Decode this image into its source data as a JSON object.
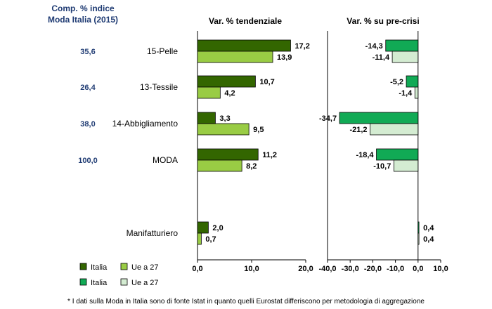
{
  "header": {
    "comp_title_line1": "Comp. % indice",
    "comp_title_line2": "Moda Italia (2015)"
  },
  "footnote": "* I dati sulla Moda in Italia sono di fonte Istat in quanto quelli Eurostat differiscono per metodologia di aggregazione",
  "chart_data": [
    {
      "type": "bar",
      "orientation": "horizontal",
      "title": "Var. % tendenziale",
      "categories": [
        "15-Pelle",
        "13-Tessile",
        "14-Abbigliamento",
        "MODA",
        "Manifatturiero"
      ],
      "composition": [
        "35,6",
        "26,4",
        "38,0",
        "100,0",
        ""
      ],
      "series": [
        {
          "name": "Italia",
          "values": [
            17.2,
            10.7,
            3.3,
            11.2,
            2.0
          ],
          "labels": [
            "17,2",
            "10,7",
            "3,3",
            "11,2",
            "2,0"
          ],
          "color": "#336600"
        },
        {
          "name": "Ue a 27",
          "values": [
            13.9,
            4.2,
            9.5,
            8.2,
            0.7
          ],
          "labels": [
            "13,9",
            "4,2",
            "9,5",
            "8,2",
            "0,7"
          ],
          "color": "#99cc44"
        }
      ],
      "xlim": [
        0,
        20
      ],
      "ticks": [
        0,
        10,
        20
      ],
      "tick_labels": [
        "0,0",
        "10,0",
        "20,0"
      ],
      "legend": "bottom-left"
    },
    {
      "type": "bar",
      "orientation": "horizontal",
      "title": "Var. % su pre-crisi",
      "categories": [
        "15-Pelle",
        "13-Tessile",
        "14-Abbigliamento",
        "MODA",
        "Manifatturiero"
      ],
      "series": [
        {
          "name": "Italia",
          "values": [
            -14.3,
            -5.2,
            -34.7,
            -18.4,
            0.4
          ],
          "labels": [
            "-14,3",
            "-5,2",
            "-34,7",
            "-18,4",
            "0,4"
          ],
          "color": "#11aa55"
        },
        {
          "name": "Ue a 27",
          "values": [
            -11.4,
            -1.4,
            -21.2,
            -10.7,
            0.4
          ],
          "labels": [
            "-11,4",
            "-1,4",
            "-21,2",
            "-10,7",
            "0,4"
          ],
          "color": "#d4ecd2"
        }
      ],
      "xlim": [
        -40,
        10
      ],
      "ticks": [
        -40,
        -30,
        -20,
        -10,
        0,
        10
      ],
      "tick_labels": [
        "-40,0",
        "-30,0",
        "-20,0",
        "-10,0",
        "0,0",
        "10,0"
      ],
      "legend": "bottom-left"
    }
  ]
}
